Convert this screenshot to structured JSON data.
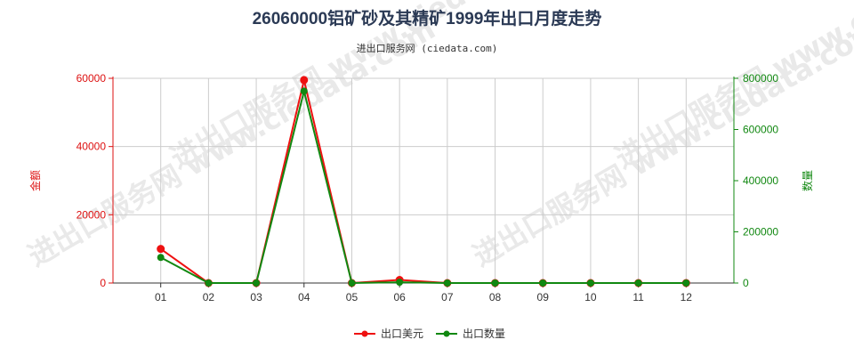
{
  "chart_data": {
    "type": "line",
    "title": "26060000铝矿砂及其精矿1999年出口月度走势",
    "subtitle": "进出口服务网 (ciedata.com)",
    "watermark": "进出口服务网 www.ciedata.com",
    "categories": [
      "01",
      "02",
      "03",
      "04",
      "05",
      "06",
      "07",
      "08",
      "09",
      "10",
      "11",
      "12"
    ],
    "left_axis": {
      "label": "金额",
      "ylim": [
        0,
        60000
      ],
      "ticks": [
        0,
        20000,
        40000,
        60000
      ],
      "color": "#dd1111"
    },
    "right_axis": {
      "label": "数量",
      "ylim": [
        0,
        800000
      ],
      "ticks": [
        0,
        200000,
        400000,
        600000,
        800000
      ],
      "color": "#118811"
    },
    "series": [
      {
        "name": "出口美元",
        "axis": "left",
        "color": "#ee1111",
        "values": [
          10000,
          0,
          0,
          59500,
          0,
          900,
          0,
          0,
          0,
          0,
          0,
          0
        ]
      },
      {
        "name": "出口数量",
        "axis": "right",
        "color": "#118811",
        "values": [
          100000,
          0,
          0,
          750000,
          0,
          3000,
          0,
          0,
          0,
          0,
          0,
          0
        ]
      }
    ],
    "grid": true,
    "legend_position": "bottom"
  }
}
